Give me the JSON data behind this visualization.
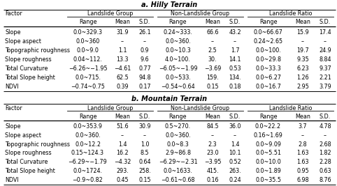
{
  "title_a": "a. Hilly Terrain",
  "title_b": "b. Mountain Terrain",
  "col_groups": [
    "Landslide Group",
    "Non-Landslide Group",
    "Landslide Ratio"
  ],
  "sub_cols": [
    "Range",
    "Mean",
    "S.D."
  ],
  "factor_label": "Factor",
  "factors": [
    "Slope",
    "Slope aspect",
    "Topographic roughness",
    "Slope roughness",
    "Total Curvature",
    "Total Slope height",
    "NDVI"
  ],
  "hilly_data": [
    [
      "0.0~329.3",
      "31.9",
      "26.1",
      "0.24~333.",
      "66.6",
      "43.2",
      "0.0~66.67",
      "15.9",
      "17.4"
    ],
    [
      "0.0~360",
      "–",
      "–",
      "0.0~360.",
      "–",
      "–",
      "0.24~2.65",
      "–",
      "–"
    ],
    [
      "0.0~9.0",
      "1.1",
      "0.9",
      "0.0~10.3",
      "2.5",
      "1.7",
      "0.0~100.",
      "19.7",
      "24.9"
    ],
    [
      "0.04~112.",
      "13.3",
      "9.6",
      "4.0~100.",
      "30.",
      "14.1",
      "0.0~29.8",
      "9.35",
      "8.84"
    ],
    [
      "−6.26~−1.95",
      "−4.61",
      "0.77",
      "−6.05~−1.99",
      "−3.69",
      "0.53",
      "0.0~33.3",
      "6.23",
      "9.37"
    ],
    [
      "0.0~715.",
      "62.5",
      "94.8",
      "0.0~533.",
      "159.",
      "134.",
      "0.0~6.27",
      "1.26",
      "2.21"
    ],
    [
      "−0.74~0.75",
      "0.39",
      "0.17",
      "−0.54~0.64",
      "0.15",
      "0.18",
      "0.0~16.7",
      "2.95",
      "3.79"
    ]
  ],
  "mountain_data": [
    [
      "0.0~353.9",
      "51.6",
      "30.9",
      "0.5~270.",
      "84.5",
      "36.0",
      "0.0~22.2",
      "3.7",
      "4.78"
    ],
    [
      "0.0~360.",
      "–",
      "–",
      "0.0~360.",
      "–",
      "–",
      "0.16~1.69",
      "–",
      "–"
    ],
    [
      "0.0~12.2",
      "1.4",
      "1.0",
      "0.0~8.3",
      "2.3",
      "1.4",
      "0.0~9.09",
      "2.8",
      "2.68"
    ],
    [
      "0.15~124.3",
      "16.2",
      "8.5",
      "2.9~86.8",
      "23.0",
      "10.1",
      "0.0~5.51",
      "1.63",
      "1.82"
    ],
    [
      "−6.29~−1.79",
      "−4.32",
      "0.64",
      "−6.29~−2.31",
      "−3.95",
      "0.52",
      "0.0~10.0",
      "1.63",
      "2.28"
    ],
    [
      "0.0~1724.",
      "293.",
      "258.",
      "0.0~1633.",
      "415.",
      "263.",
      "0.0~1.89",
      "0.95",
      "0.63"
    ],
    [
      "−0.9~0.82",
      "0.45",
      "0.15",
      "−0.61~0.68",
      "0.16",
      "0.24",
      "0.0~35.5",
      "6.98",
      "8.76"
    ]
  ],
  "bg_color": "#ffffff",
  "line_color": "#000000",
  "font_size": 5.8,
  "title_font_size": 7.0,
  "factor_font_size": 5.8
}
